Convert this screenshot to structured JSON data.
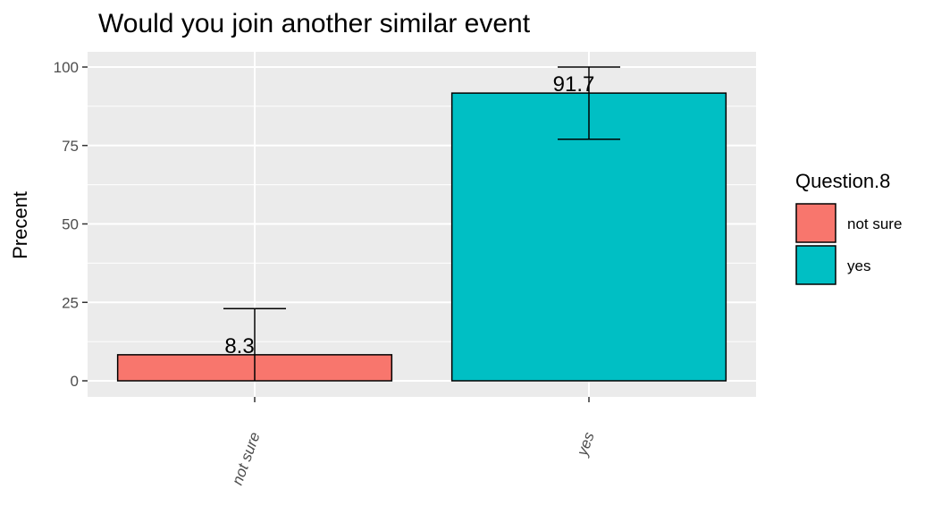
{
  "chart_data": {
    "type": "bar",
    "title": "Would you join another similar event",
    "xlabel": "",
    "ylabel": "Precent",
    "categories": [
      "not sure",
      "yes"
    ],
    "values": [
      8.3,
      91.7
    ],
    "data_labels": [
      "8.3",
      "91.7"
    ],
    "error_bars": [
      {
        "low": 0,
        "high": 23
      },
      {
        "low": 77,
        "high": 100
      }
    ],
    "ylim": [
      0,
      100
    ],
    "yticks": [
      0,
      25,
      50,
      75,
      100
    ],
    "grid": true,
    "legend": {
      "title": "Question.8",
      "position": "right",
      "entries": [
        "not sure",
        "yes"
      ]
    },
    "colors": {
      "not sure": "#F8766D",
      "yes": "#00BFC4",
      "panel": "#EBEBEB",
      "grid": "#FFFFFF"
    }
  }
}
